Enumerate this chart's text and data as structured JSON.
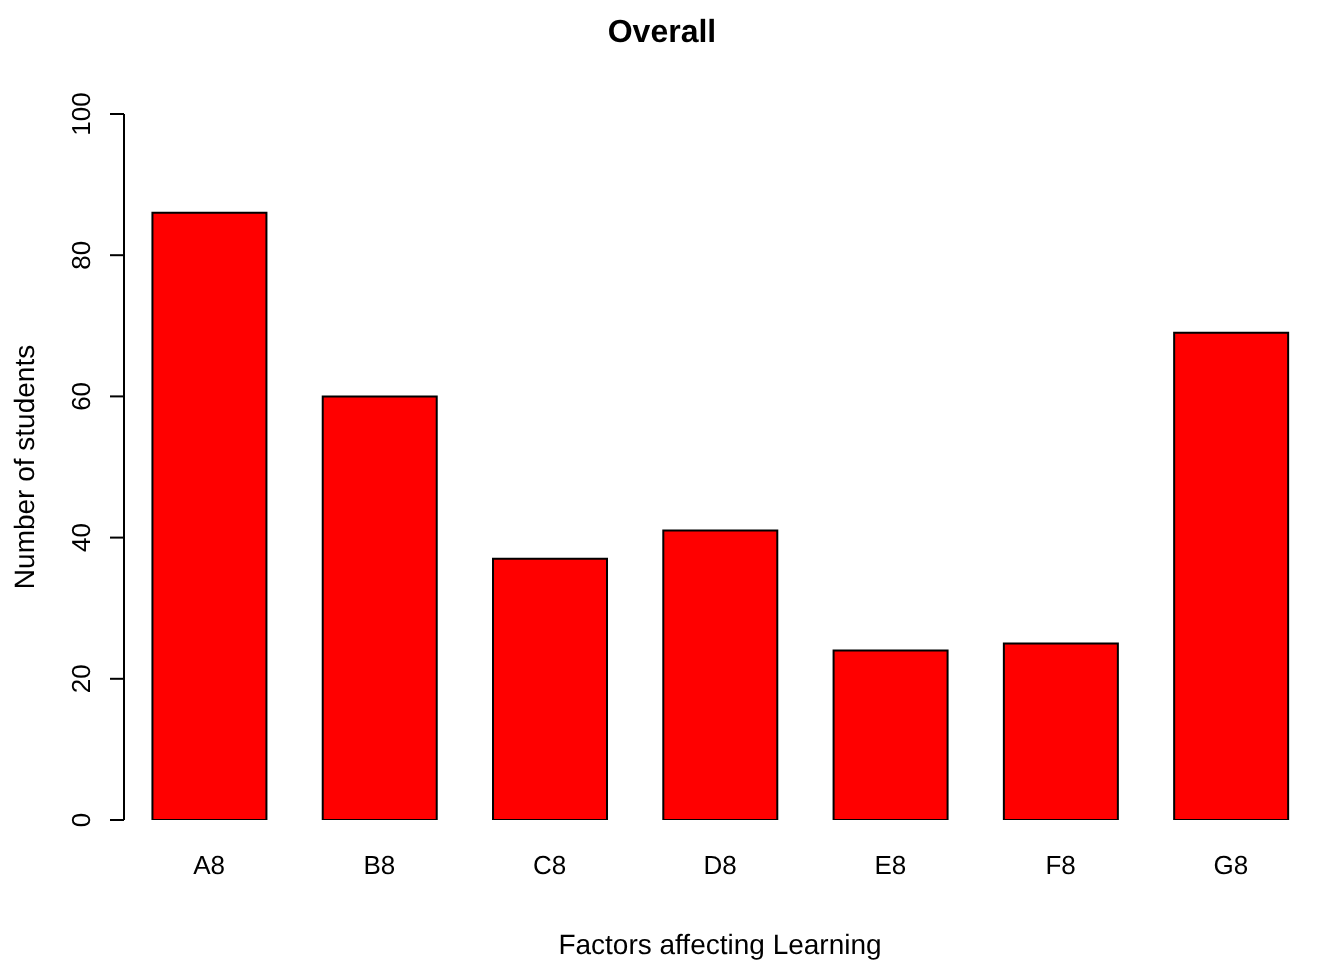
{
  "chart_data": {
    "type": "bar",
    "title": "Overall",
    "xlabel": "Factors affecting Learning",
    "ylabel": "Number of students",
    "categories": [
      "A8",
      "B8",
      "C8",
      "D8",
      "E8",
      "F8",
      "G8"
    ],
    "values": [
      86,
      60,
      37,
      41,
      24,
      25,
      69
    ],
    "color": "#ff0000",
    "ylim": [
      0,
      100
    ],
    "yticks": [
      0,
      20,
      40,
      60,
      80,
      100
    ],
    "grid": false
  }
}
